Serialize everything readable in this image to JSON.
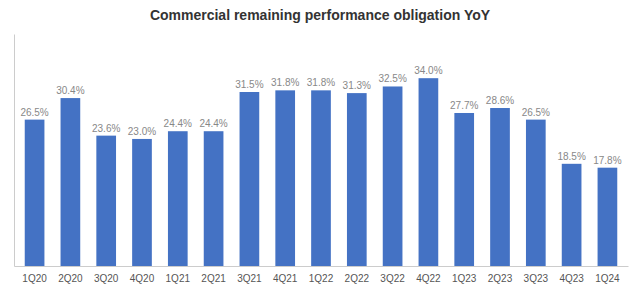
{
  "chart_data": {
    "type": "bar",
    "title": "Commercial remaining performance obligation YoY",
    "categories": [
      "1Q20",
      "2Q20",
      "3Q20",
      "4Q20",
      "1Q21",
      "2Q21",
      "3Q21",
      "4Q21",
      "1Q22",
      "2Q22",
      "3Q22",
      "4Q22",
      "1Q23",
      "2Q23",
      "3Q23",
      "4Q23",
      "1Q24"
    ],
    "values": [
      26.5,
      30.4,
      23.6,
      23.0,
      24.4,
      24.4,
      31.5,
      31.8,
      31.8,
      31.3,
      32.5,
      34.0,
      27.7,
      28.6,
      26.5,
      18.5,
      17.8
    ],
    "value_labels": [
      "26.5%",
      "30.4%",
      "23.6%",
      "23.0%",
      "24.4%",
      "24.4%",
      "31.5%",
      "31.8%",
      "31.8%",
      "31.3%",
      "32.5%",
      "34.0%",
      "27.7%",
      "28.6%",
      "26.5%",
      "18.5%",
      "17.8%"
    ],
    "color": "#4472c4",
    "ylim": [
      0,
      42
    ],
    "data_labels": true,
    "tick_labels": "x",
    "grid": false
  }
}
